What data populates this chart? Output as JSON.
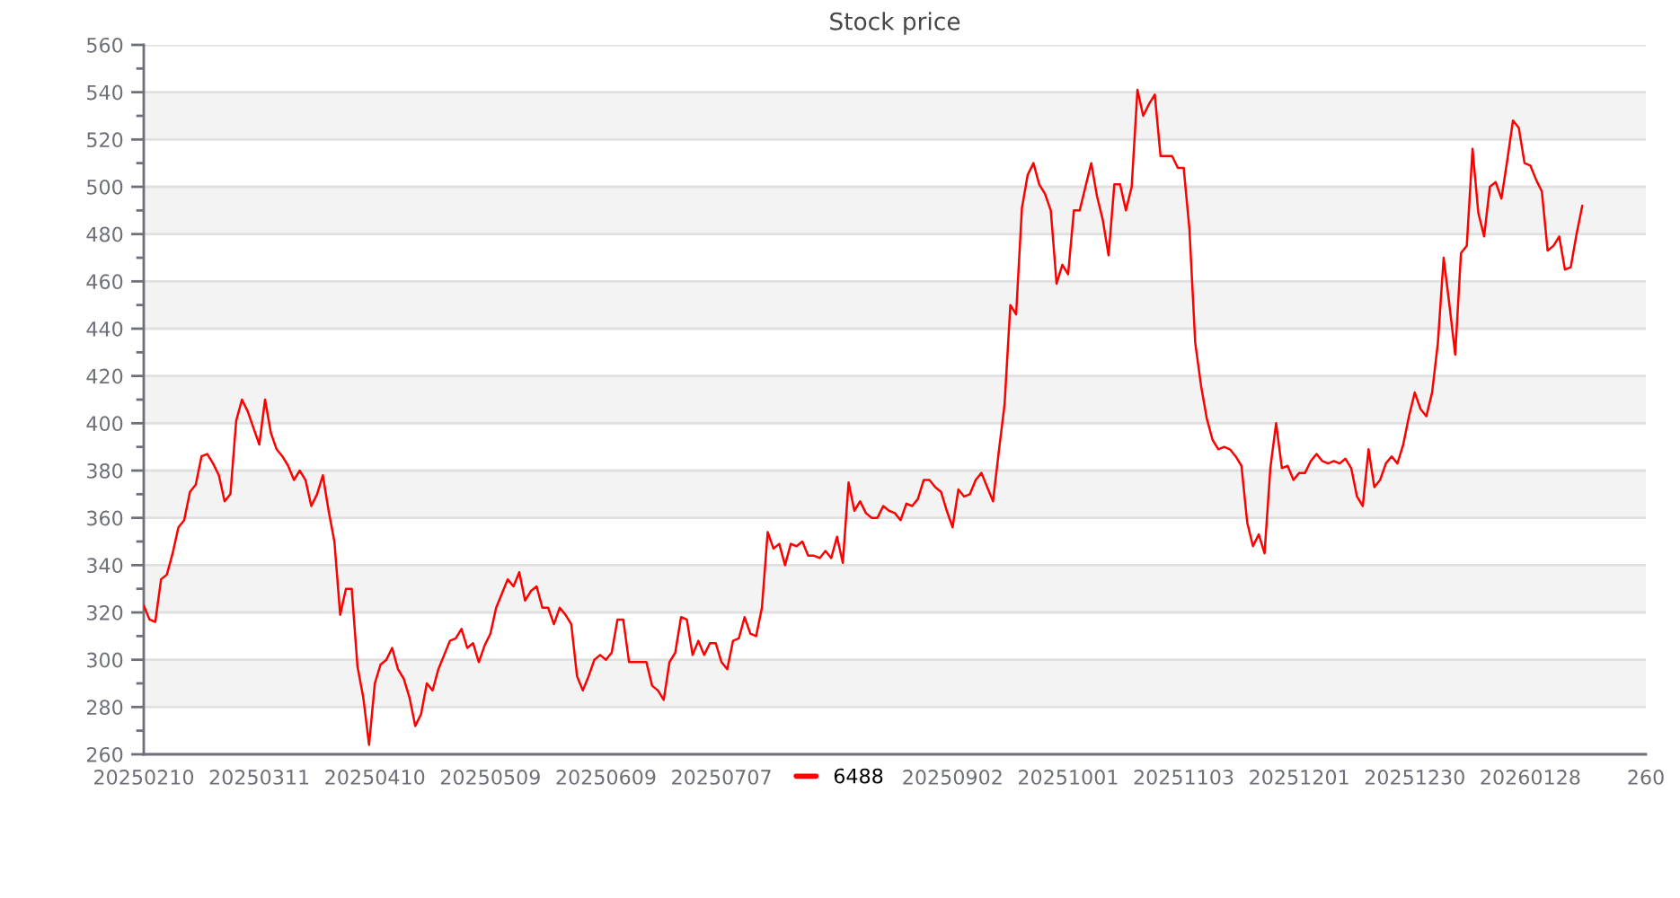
{
  "chart_data": {
    "type": "line",
    "title": "Stock price",
    "categories": [
      "20250210",
      null,
      null,
      null,
      null,
      null,
      null,
      null,
      null,
      null,
      null,
      null,
      null,
      null,
      null,
      null,
      null,
      null,
      null,
      null,
      "20250311",
      null,
      null,
      null,
      null,
      null,
      null,
      null,
      null,
      null,
      null,
      null,
      null,
      null,
      null,
      null,
      null,
      null,
      null,
      null,
      "20250410",
      null,
      null,
      null,
      null,
      null,
      null,
      null,
      null,
      null,
      null,
      null,
      null,
      null,
      null,
      null,
      null,
      null,
      null,
      null,
      "20250509",
      null,
      null,
      null,
      null,
      null,
      null,
      null,
      null,
      null,
      null,
      null,
      null,
      null,
      null,
      null,
      null,
      null,
      null,
      null,
      "20250609",
      null,
      null,
      null,
      null,
      null,
      null,
      null,
      null,
      null,
      null,
      null,
      null,
      null,
      null,
      null,
      null,
      null,
      null,
      null,
      "20250707",
      null,
      null,
      null,
      null,
      null,
      null,
      null,
      null,
      null,
      null,
      null,
      null,
      null,
      null,
      null,
      null,
      null,
      null,
      null,
      null,
      null,
      null,
      null,
      null,
      null,
      null,
      null,
      null,
      null,
      null,
      null,
      null,
      null,
      null,
      null,
      null,
      null,
      null,
      null,
      "20250902",
      null,
      null,
      null,
      null,
      null,
      null,
      null,
      null,
      null,
      null,
      null,
      null,
      null,
      null,
      null,
      null,
      null,
      null,
      null,
      "20251001",
      null,
      null,
      null,
      null,
      null,
      null,
      null,
      null,
      null,
      null,
      null,
      null,
      null,
      null,
      null,
      null,
      null,
      null,
      null,
      "20251103",
      null,
      null,
      null,
      null,
      null,
      null,
      null,
      null,
      null,
      null,
      null,
      null,
      null,
      null,
      null,
      null,
      null,
      null,
      null,
      "20251201",
      null,
      null,
      null,
      null,
      null,
      null,
      null,
      null,
      null,
      null,
      null,
      null,
      null,
      null,
      null,
      null,
      null,
      null,
      null,
      "20251230",
      null,
      null,
      null,
      null,
      null,
      null,
      null,
      null,
      null,
      null,
      null,
      null,
      null,
      null,
      null,
      null,
      null,
      null,
      null,
      "20260128",
      null,
      null,
      null,
      null,
      null,
      null,
      null,
      null,
      null,
      null,
      null,
      null,
      null,
      null,
      null,
      null,
      null,
      null,
      null,
      "260"
    ],
    "series": [
      {
        "name": "6488",
        "color": "#ff0000",
        "values": [
          323,
          317,
          316,
          334,
          336,
          345,
          356,
          359,
          371,
          374,
          386,
          387,
          383,
          378,
          367,
          370,
          401,
          410,
          405,
          398,
          391,
          410,
          396,
          389,
          386,
          382,
          376,
          380,
          376,
          365,
          370,
          378,
          363,
          350,
          319,
          330,
          330,
          297,
          284,
          264,
          290,
          298,
          300,
          305,
          296,
          292,
          284,
          272,
          277,
          290,
          287,
          296,
          302,
          308,
          309,
          313,
          305,
          307,
          299,
          306,
          311,
          322,
          328,
          334,
          331,
          337,
          325,
          329,
          331,
          322,
          322,
          315,
          322,
          319,
          315,
          293,
          287,
          293,
          300,
          302,
          300,
          303,
          317,
          317,
          299,
          299,
          299,
          299,
          289,
          287,
          283,
          299,
          303,
          318,
          317,
          302,
          308,
          302,
          307,
          307,
          299,
          296,
          308,
          309,
          318,
          311,
          310,
          322,
          354,
          347,
          349,
          340,
          349,
          348,
          350,
          344,
          344,
          343,
          346,
          343,
          352,
          341,
          375,
          363,
          367,
          362,
          360,
          360,
          365,
          363,
          362,
          359,
          366,
          365,
          368,
          376,
          376,
          373,
          371,
          363,
          356,
          372,
          369,
          370,
          376,
          379,
          373,
          367,
          388,
          408,
          450,
          446,
          491,
          505,
          510,
          501,
          497,
          490,
          459,
          467,
          463,
          490,
          490,
          500,
          510,
          496,
          486,
          471,
          501,
          501,
          490,
          500,
          541,
          530,
          535,
          539,
          513,
          513,
          513,
          508,
          508,
          482,
          434,
          416,
          402,
          393,
          389,
          390,
          389,
          386,
          382,
          358,
          348,
          353,
          345,
          381,
          400,
          381,
          382,
          376,
          379,
          379,
          384,
          387,
          384,
          383,
          384,
          383,
          385,
          381,
          369,
          365,
          389,
          373,
          376,
          383,
          386,
          383,
          391,
          403,
          413,
          406,
          403,
          413,
          434,
          470,
          450,
          429,
          472,
          475,
          516,
          489,
          479,
          500,
          502,
          495,
          511,
          528,
          525,
          510,
          509,
          503,
          498,
          473,
          475,
          479,
          465,
          466,
          480,
          492,
          null,
          null,
          null,
          null,
          null,
          null,
          null,
          null,
          null,
          null,
          null
        ]
      }
    ],
    "ylim": [
      260,
      560
    ],
    "yticks": [
      260,
      280,
      300,
      320,
      340,
      360,
      380,
      400,
      420,
      440,
      460,
      480,
      500,
      520,
      540,
      560
    ],
    "grid": "y",
    "legend": "bottom",
    "bands": [
      {
        "axis": "y",
        "from": 280,
        "to": 300,
        "color": "#f3f3f3"
      },
      {
        "axis": "y",
        "from": 320,
        "to": 340,
        "color": "#f3f3f3"
      },
      {
        "axis": "y",
        "from": 360,
        "to": 380,
        "color": "#f3f3f3"
      },
      {
        "axis": "y",
        "from": 400,
        "to": 420,
        "color": "#f3f3f3"
      },
      {
        "axis": "y",
        "from": 440,
        "to": 460,
        "color": "#f3f3f3"
      },
      {
        "axis": "y",
        "from": 480,
        "to": 500,
        "color": "#f3f3f3"
      },
      {
        "axis": "y",
        "from": 520,
        "to": 540,
        "color": "#f3f3f3"
      }
    ]
  }
}
